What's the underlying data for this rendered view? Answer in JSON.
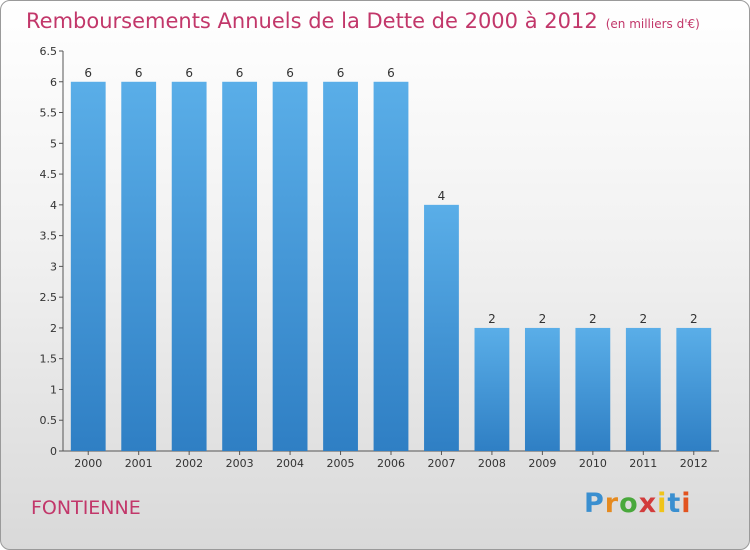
{
  "title": "Remboursements Annuels de la Dette de 2000 à 2012",
  "subtitle": "(en milliers d'€)",
  "commune": "FONTIENNE",
  "logo": {
    "letters": [
      "P",
      "r",
      "o",
      "x",
      "i",
      "t",
      "i"
    ],
    "colors": [
      "#3a8fd0",
      "#e58a1f",
      "#49a83c",
      "#d23c3c",
      "#f0c419",
      "#3a8fd0",
      "#e2531f"
    ]
  },
  "colors": {
    "bar": "#3f95dc",
    "bar_top": "#5aaee8",
    "text_accent": "#c2376a"
  },
  "chart_data": {
    "type": "bar",
    "title": "Remboursements Annuels de la Dette de 2000 à 2012",
    "subtitle": "(en milliers d'€)",
    "categories": [
      "2000",
      "2001",
      "2002",
      "2003",
      "2004",
      "2005",
      "2006",
      "2007",
      "2008",
      "2009",
      "2010",
      "2011",
      "2012"
    ],
    "values": [
      6,
      6,
      6,
      6,
      6,
      6,
      6,
      4,
      2,
      2,
      2,
      2,
      2
    ],
    "data_labels": [
      "6",
      "6",
      "6",
      "6",
      "6",
      "6",
      "6",
      "4",
      "2",
      "2",
      "2",
      "2",
      "2"
    ],
    "ylim": [
      0,
      6.5
    ],
    "yticks": [
      0,
      0.5,
      1,
      1.5,
      2,
      2.5,
      3,
      3.5,
      4,
      4.5,
      5,
      5.5,
      6,
      6.5
    ],
    "ytick_labels": [
      "0",
      "0.5",
      "1",
      "1.5",
      "2",
      "2.5",
      "3",
      "3.5",
      "4",
      "4.5",
      "5",
      "5.5",
      "6",
      "6.5"
    ],
    "grid": false,
    "legend": "none"
  }
}
